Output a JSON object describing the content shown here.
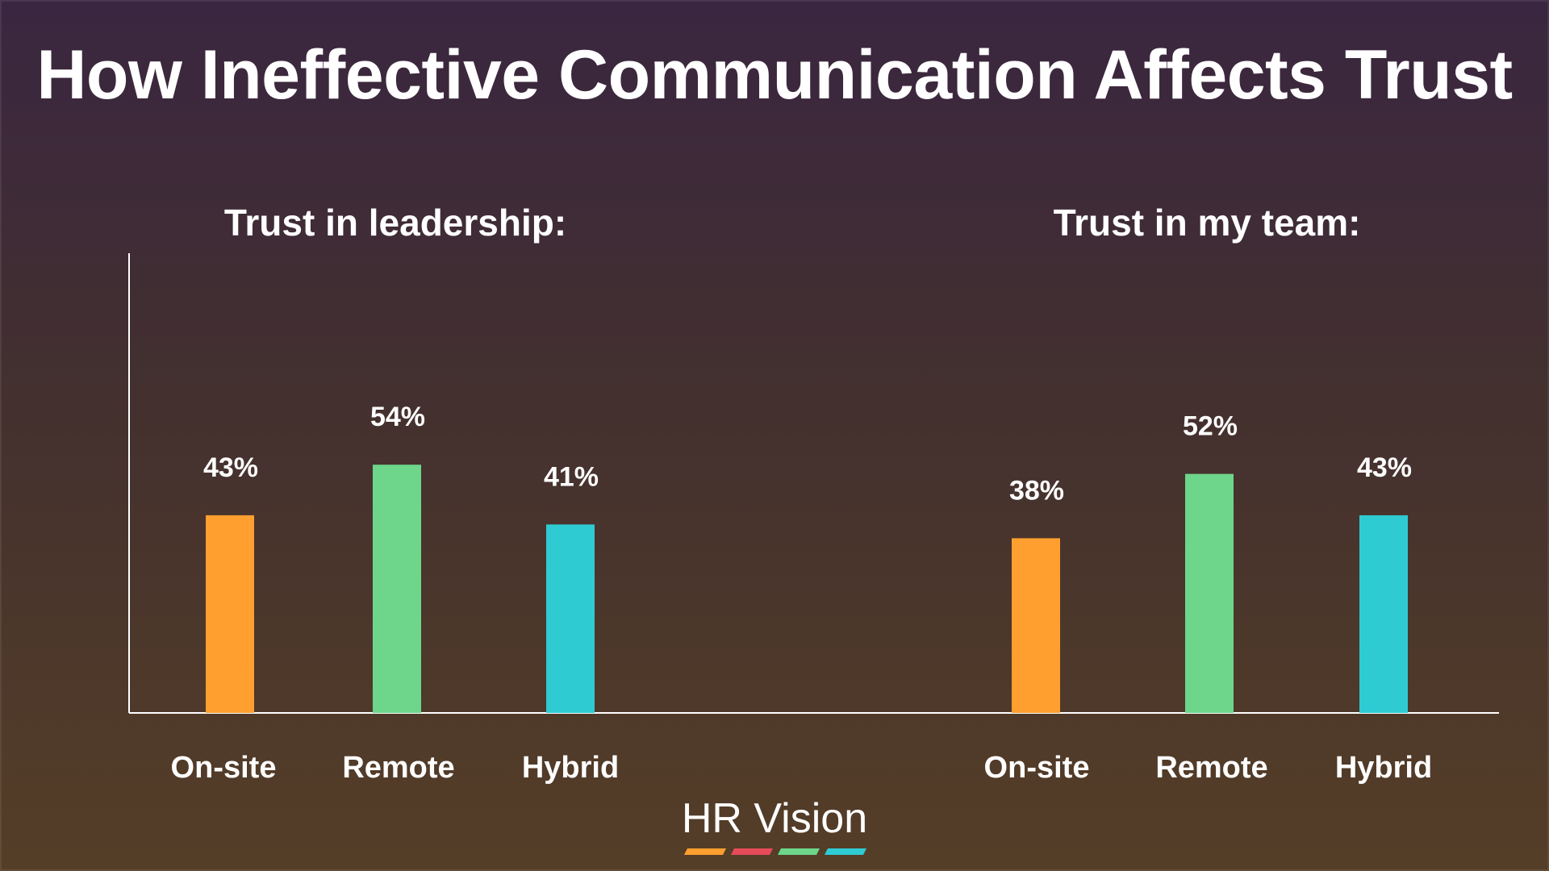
{
  "title": "How Ineffective Communication Affects Trust",
  "brand": {
    "name": "HR Vision",
    "stripe_colors": [
      "#ff9f30",
      "#e64b5a",
      "#6dd68a",
      "#2fcbd3"
    ]
  },
  "colors": {
    "On-site": "#ff9f30",
    "Remote": "#6dd68a",
    "Hybrid": "#2fcbd3",
    "axis": "#ffffff"
  },
  "chart_data": [
    {
      "type": "bar",
      "title": "Trust in leadership:",
      "categories": [
        "On-site",
        "Remote",
        "Hybrid"
      ],
      "values": [
        43,
        54,
        41
      ],
      "value_labels": [
        "43%",
        "54%",
        "41%"
      ],
      "ylim": [
        0,
        100
      ],
      "grid": false,
      "legend": "none"
    },
    {
      "type": "bar",
      "title": "Trust in my team:",
      "categories": [
        "On-site",
        "Remote",
        "Hybrid"
      ],
      "values": [
        38,
        52,
        43
      ],
      "value_labels": [
        "38%",
        "52%",
        "43%"
      ],
      "ylim": [
        0,
        100
      ],
      "grid": false,
      "legend": "none"
    }
  ]
}
